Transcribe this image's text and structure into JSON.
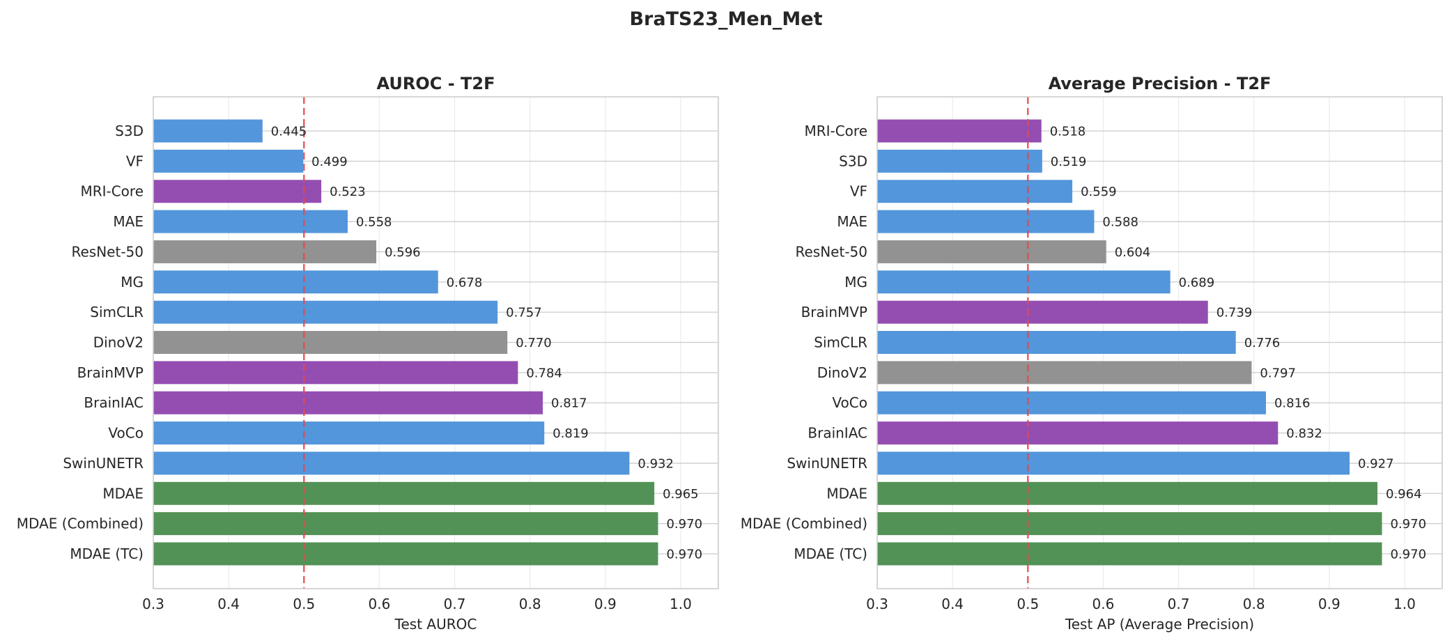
{
  "figure": {
    "title": "BraTS23_Men_Met"
  },
  "colors": {
    "blue": "#4a90d9",
    "purple": "#8e44ad",
    "gray": "#8c8c8c",
    "green": "#4a8c4e",
    "reference_line": "#e8474c"
  },
  "chart_data": [
    {
      "type": "bar",
      "orientation": "horizontal",
      "title": "AUROC - T2F",
      "xlabel": "Test AUROC",
      "ylabel": "",
      "xlim": [
        0.3,
        1.05
      ],
      "xticks": [
        "0.3",
        "0.4",
        "0.5",
        "0.6",
        "0.7",
        "0.8",
        "0.9",
        "1.0"
      ],
      "reference_line": 0.5,
      "grid": true,
      "categories": [
        "S3D",
        "VF",
        "MRI-Core",
        "MAE",
        "ResNet-50",
        "MG",
        "SimCLR",
        "DinoV2",
        "BrainMVP",
        "BrainIAC",
        "VoCo",
        "SwinUNETR",
        "MDAE",
        "MDAE (Combined)",
        "MDAE (TC)"
      ],
      "values": [
        0.445,
        0.499,
        0.523,
        0.558,
        0.596,
        0.678,
        0.757,
        0.77,
        0.784,
        0.817,
        0.819,
        0.932,
        0.965,
        0.97,
        0.97
      ],
      "value_labels": [
        "0.445",
        "0.499",
        "0.523",
        "0.558",
        "0.596",
        "0.678",
        "0.757",
        "0.770",
        "0.784",
        "0.817",
        "0.819",
        "0.932",
        "0.965",
        "0.970",
        "0.970"
      ],
      "bar_colors": [
        "blue",
        "blue",
        "purple",
        "blue",
        "gray",
        "blue",
        "blue",
        "gray",
        "purple",
        "purple",
        "blue",
        "blue",
        "green",
        "green",
        "green"
      ]
    },
    {
      "type": "bar",
      "orientation": "horizontal",
      "title": "Average Precision - T2F",
      "xlabel": "Test AP (Average Precision)",
      "ylabel": "",
      "xlim": [
        0.3,
        1.05
      ],
      "xticks": [
        "0.3",
        "0.4",
        "0.5",
        "0.6",
        "0.7",
        "0.8",
        "0.9",
        "1.0"
      ],
      "reference_line": 0.5,
      "grid": true,
      "categories": [
        "MRI-Core",
        "S3D",
        "VF",
        "MAE",
        "ResNet-50",
        "MG",
        "BrainMVP",
        "SimCLR",
        "DinoV2",
        "VoCo",
        "BrainIAC",
        "SwinUNETR",
        "MDAE",
        "MDAE (Combined)",
        "MDAE (TC)"
      ],
      "values": [
        0.518,
        0.519,
        0.559,
        0.588,
        0.604,
        0.689,
        0.739,
        0.776,
        0.797,
        0.816,
        0.832,
        0.927,
        0.964,
        0.97,
        0.97
      ],
      "value_labels": [
        "0.518",
        "0.519",
        "0.559",
        "0.588",
        "0.604",
        "0.689",
        "0.739",
        "0.776",
        "0.797",
        "0.816",
        "0.832",
        "0.927",
        "0.964",
        "0.970",
        "0.970"
      ],
      "bar_colors": [
        "purple",
        "blue",
        "blue",
        "blue",
        "gray",
        "blue",
        "purple",
        "blue",
        "gray",
        "blue",
        "purple",
        "blue",
        "green",
        "green",
        "green"
      ]
    }
  ]
}
